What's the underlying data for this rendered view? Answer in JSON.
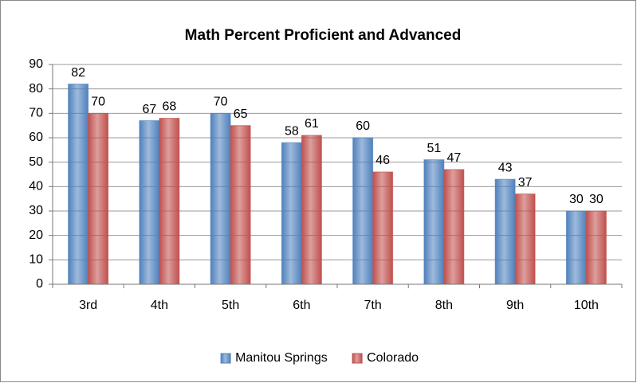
{
  "chart_data": {
    "type": "bar",
    "title": "Math Percent Proficient and Advanced",
    "categories": [
      "3rd",
      "4th",
      "5th",
      "6th",
      "7th",
      "8th",
      "9th",
      "10th"
    ],
    "series": [
      {
        "name": "Manitou Springs",
        "color": "#4f81bd",
        "values": [
          82,
          67,
          70,
          58,
          60,
          51,
          43,
          30
        ]
      },
      {
        "name": "Colorado",
        "color": "#c0504d",
        "values": [
          70,
          68,
          65,
          61,
          46,
          47,
          37,
          30
        ]
      }
    ],
    "ylim": [
      0,
      90
    ],
    "yticks": [
      0,
      10,
      20,
      30,
      40,
      50,
      60,
      70,
      80,
      90
    ],
    "grid": true,
    "legend": "bottom"
  }
}
